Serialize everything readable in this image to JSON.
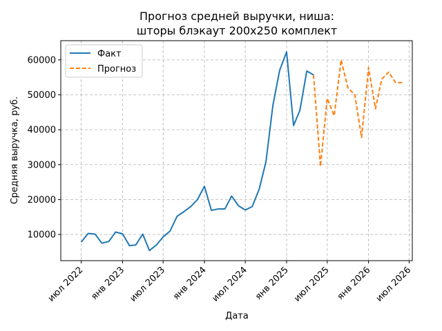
{
  "chart_data": {
    "type": "line",
    "title_line1": "Прогноз средней выручки, ниша:",
    "title_line2": "шторы блэкаут 200x250 комплект",
    "xlabel": "Дата",
    "ylabel": "Средняя выручка, руб.",
    "xlim": [
      "2022-04-01",
      "2026-07-15"
    ],
    "ylim": [
      2500,
      65500
    ],
    "grid": true,
    "legend_position": "top-left",
    "x_ticks": [
      {
        "date": "2022-07-01",
        "label": "июл 2022"
      },
      {
        "date": "2023-01-01",
        "label": "янв 2023"
      },
      {
        "date": "2023-07-01",
        "label": "июл 2023"
      },
      {
        "date": "2024-01-01",
        "label": "янв 2024"
      },
      {
        "date": "2024-07-01",
        "label": "июл 2024"
      },
      {
        "date": "2025-01-01",
        "label": "янв 2025"
      },
      {
        "date": "2025-07-01",
        "label": "июл 2025"
      },
      {
        "date": "2026-01-01",
        "label": "янв 2026"
      },
      {
        "date": "2026-07-01",
        "label": "июл 2026"
      }
    ],
    "y_ticks": [
      {
        "value": 10000,
        "label": "10000"
      },
      {
        "value": 20000,
        "label": "20000"
      },
      {
        "value": 30000,
        "label": "30000"
      },
      {
        "value": 40000,
        "label": "40000"
      },
      {
        "value": 50000,
        "label": "50000"
      },
      {
        "value": 60000,
        "label": "60000"
      }
    ],
    "series": [
      {
        "name": "Факт",
        "color": "#1f77b4",
        "style": "solid",
        "x": [
          "2022-07-01",
          "2022-08-01",
          "2022-09-01",
          "2022-10-01",
          "2022-11-01",
          "2022-12-01",
          "2023-01-01",
          "2023-02-01",
          "2023-03-01",
          "2023-04-01",
          "2023-05-01",
          "2023-06-01",
          "2023-07-01",
          "2023-08-01",
          "2023-09-01",
          "2023-10-01",
          "2023-11-01",
          "2023-12-01",
          "2024-01-01",
          "2024-02-01",
          "2024-03-01",
          "2024-04-01",
          "2024-05-01",
          "2024-06-01",
          "2024-07-01",
          "2024-08-01",
          "2024-09-01",
          "2024-10-01",
          "2024-11-01",
          "2024-12-01",
          "2025-01-01",
          "2025-02-01",
          "2025-03-01",
          "2025-04-01",
          "2025-05-01"
        ],
        "values": [
          7800,
          10300,
          10100,
          7500,
          8000,
          10700,
          10200,
          6800,
          7000,
          10100,
          5400,
          7000,
          9300,
          11000,
          15200,
          16500,
          18000,
          20000,
          23800,
          16900,
          17300,
          17300,
          21000,
          18200,
          17000,
          18000,
          23000,
          30800,
          47000,
          57000,
          62300,
          41200,
          45500,
          56800,
          55700
        ]
      },
      {
        "name": "Прогноз",
        "color": "#ff7f0e",
        "style": "dashed",
        "x": [
          "2025-05-01",
          "2025-06-01",
          "2025-07-01",
          "2025-08-01",
          "2025-09-01",
          "2025-10-01",
          "2025-11-01",
          "2025-12-01",
          "2026-01-01",
          "2026-02-01",
          "2026-03-01",
          "2026-04-01",
          "2026-05-01",
          "2026-06-01"
        ],
        "values": [
          55700,
          29500,
          49000,
          44000,
          60000,
          52000,
          50000,
          37800,
          57800,
          46000,
          54500,
          56500,
          53500,
          53500
        ]
      }
    ]
  }
}
